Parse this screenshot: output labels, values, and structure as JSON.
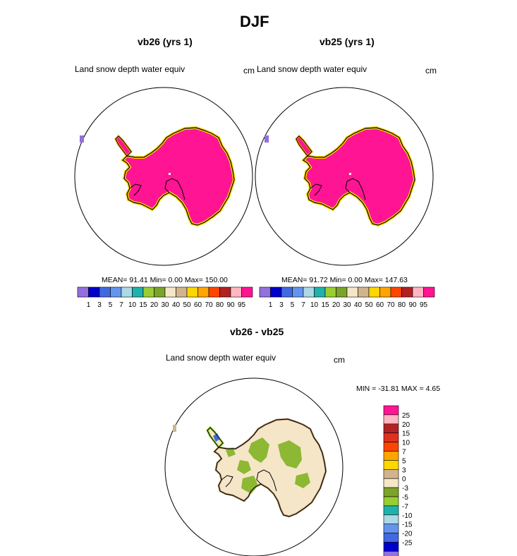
{
  "figure_title": "DJF",
  "panels": [
    {
      "title": "vb26 (yrs 1)",
      "variable": "Land snow depth water equiv",
      "units": "cm",
      "stats": "MEAN=  91.41  Min=   0.00  Max= 150.00"
    },
    {
      "title": "vb25 (yrs 1)",
      "variable": "Land snow depth water equiv",
      "units": "cm",
      "stats": "MEAN=  91.72  Min=   0.00  Max= 147.63"
    },
    {
      "title": "vb26 - vb25",
      "variable": "Land snow depth water equiv",
      "units": "cm",
      "stats": "MIN = -31.81 MAX =   4.65"
    }
  ],
  "abs_colorbar": {
    "labels": [
      "1",
      "3",
      "5",
      "7",
      "10",
      "15",
      "20",
      "30",
      "40",
      "50",
      "60",
      "70",
      "80",
      "90",
      "95"
    ],
    "colors": [
      "#9370DB",
      "#0000CD",
      "#4169E1",
      "#6495ED",
      "#ADD8E6",
      "#20B2AA",
      "#9ACD32",
      "#7BA428",
      "#F5E6C8",
      "#D2B48C",
      "#FFD700",
      "#FFA500",
      "#FF4500",
      "#B22222",
      "#FFB6C1",
      "#FF1493"
    ]
  },
  "diff_colorbar": {
    "labels": [
      "25",
      "20",
      "15",
      "10",
      "7",
      "5",
      "3",
      "0",
      "-3",
      "-5",
      "-7",
      "-10",
      "-15",
      "-20",
      "-25"
    ],
    "colors": [
      "#FF1493",
      "#FFB6C1",
      "#B22222",
      "#E03020",
      "#FF4500",
      "#FFA500",
      "#FFD700",
      "#D2B48C",
      "#F5E6C8",
      "#7BA428",
      "#9ACD32",
      "#20B2AA",
      "#ADD8E6",
      "#6495ED",
      "#4169E1",
      "#0000CD",
      "#9370DB"
    ]
  },
  "map_colors": {
    "ice_abs": "#FF1493",
    "ice_diff": "#F5E6C8",
    "diff_patch": "#8DB833",
    "outline": "#000000"
  }
}
